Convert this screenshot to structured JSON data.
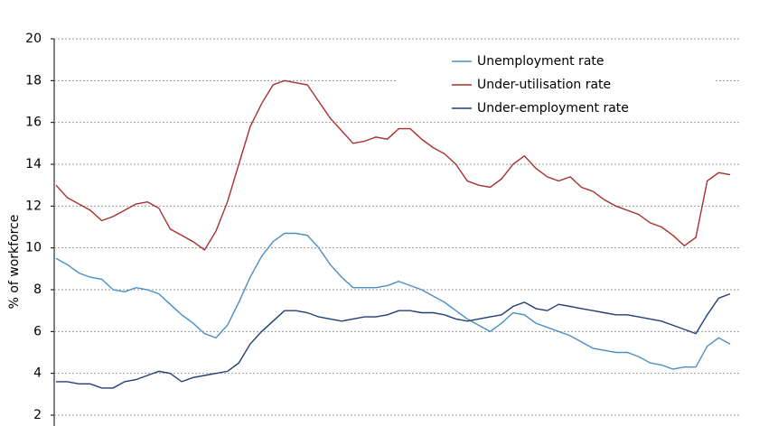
{
  "chart_data": {
    "type": "line",
    "y_label": "% of  workforce",
    "ylim": [
      2,
      20
    ],
    "yticks": [
      2,
      4,
      6,
      8,
      10,
      12,
      14,
      16,
      18,
      20
    ],
    "grid": true,
    "legend": "top-right",
    "series": [
      {
        "name": "Unemployment rate",
        "color": "#4a8fc4",
        "values": [
          9.5,
          9.2,
          8.8,
          8.6,
          8.5,
          8.0,
          7.9,
          8.1,
          8.0,
          7.8,
          7.3,
          6.8,
          6.4,
          5.9,
          5.7,
          6.3,
          7.4,
          8.6,
          9.6,
          10.3,
          10.7,
          10.7,
          10.6,
          10.0,
          9.2,
          8.6,
          8.1,
          8.1,
          8.1,
          8.2,
          8.4,
          8.2,
          8.0,
          7.7,
          7.4,
          7.0,
          6.6,
          6.3,
          6.0,
          6.4,
          6.9,
          6.8,
          6.4,
          6.2,
          6.0,
          5.8,
          5.5,
          5.2,
          5.1,
          5.0,
          5.0,
          4.8,
          4.5,
          4.4,
          4.2,
          4.3,
          4.3,
          5.3,
          5.7,
          5.4
        ]
      },
      {
        "name": "Under-utilisation rate",
        "color": "#a8302c",
        "values": [
          13.0,
          12.4,
          12.1,
          11.8,
          11.3,
          11.5,
          11.8,
          12.1,
          12.2,
          11.9,
          10.9,
          10.6,
          10.3,
          9.9,
          10.8,
          12.2,
          14.0,
          15.8,
          16.9,
          17.8,
          18.0,
          17.9,
          17.8,
          17.0,
          16.2,
          15.6,
          15.0,
          15.1,
          15.3,
          15.2,
          15.7,
          15.7,
          15.2,
          14.8,
          14.5,
          14.0,
          13.2,
          13.0,
          12.9,
          13.3,
          14.0,
          14.4,
          13.8,
          13.4,
          13.2,
          13.4,
          12.9,
          12.7,
          12.3,
          12.0,
          11.8,
          11.6,
          11.2,
          11.0,
          10.6,
          10.1,
          10.5,
          13.2,
          13.6,
          13.5
        ]
      },
      {
        "name": "Under-employment rate",
        "color": "#1f3f78",
        "values": [
          3.6,
          3.6,
          3.5,
          3.5,
          3.3,
          3.3,
          3.6,
          3.7,
          3.9,
          4.1,
          4.0,
          3.6,
          3.8,
          3.9,
          4.0,
          4.1,
          4.5,
          5.4,
          6.0,
          6.5,
          7.0,
          7.0,
          6.9,
          6.7,
          6.6,
          6.5,
          6.6,
          6.7,
          6.7,
          6.8,
          7.0,
          7.0,
          6.9,
          6.9,
          6.8,
          6.6,
          6.5,
          6.6,
          6.7,
          6.8,
          7.2,
          7.4,
          7.1,
          7.0,
          7.3,
          7.2,
          7.1,
          7.0,
          6.9,
          6.8,
          6.8,
          6.7,
          6.6,
          6.5,
          6.3,
          6.1,
          5.9,
          6.8,
          7.6,
          7.8
        ]
      }
    ]
  }
}
